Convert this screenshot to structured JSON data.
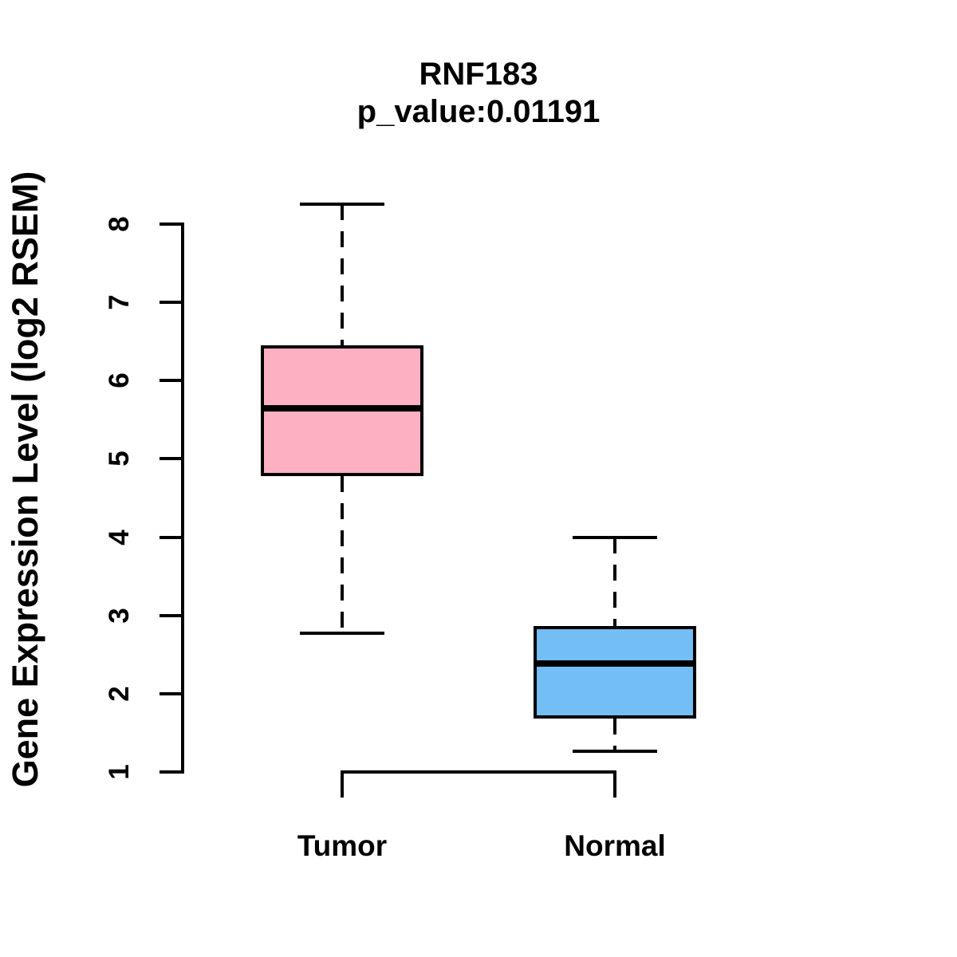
{
  "chart_data": {
    "type": "boxplot",
    "title": "RNF183",
    "subtitle": "p_value:0.01191",
    "ylabel": "Gene Expression Level (log2 RSEM)",
    "xlabel": "",
    "ylim": [
      1,
      8
    ],
    "y_ticks": [
      1,
      2,
      3,
      4,
      5,
      6,
      7,
      8
    ],
    "grid": false,
    "legend": false,
    "line_color": "#000000",
    "background_color": "#ffffff",
    "groups": [
      {
        "label": "Tumor",
        "fill_color": "#FCB0C1",
        "lower_whisker": 2.77,
        "q1": 4.78,
        "median": 5.65,
        "q3": 6.45,
        "upper_whisker": 8.25
      },
      {
        "label": "Normal",
        "fill_color": "#74BEF6",
        "lower_whisker": 1.26,
        "q1": 1.68,
        "median": 2.39,
        "q3": 2.86,
        "upper_whisker": 4.0
      }
    ],
    "comparison_bracket": {
      "between": [
        "Tumor",
        "Normal"
      ]
    }
  }
}
